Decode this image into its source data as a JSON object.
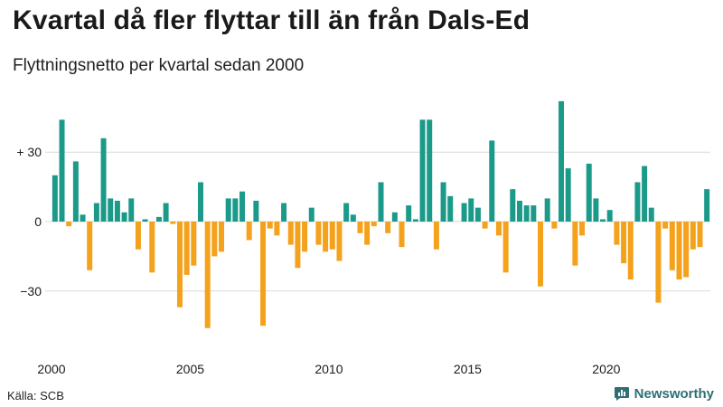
{
  "title": "Kvartal då fler flyttar till än från Dals-Ed",
  "subtitle": "Flyttningsnetto per kvartal sedan 2000",
  "source": "Källa: SCB",
  "brand": {
    "name": "Newsworthy",
    "icon": "newsworthy-logo-icon"
  },
  "colors": {
    "positive": "#1b9a8a",
    "negative": "#f4a11c",
    "grid": "#d9d9d9",
    "text": "#1a1a1a",
    "brand": "#2e6f73"
  },
  "chart_data": {
    "type": "bar",
    "title": "Kvartal då fler flyttar till än från Dals-Ed",
    "subtitle": "Flyttningsnetto per kvartal sedan 2000",
    "start": "2000Q1",
    "ylim": [
      -50,
      55
    ],
    "grid": true,
    "yticks": [
      {
        "value": 30,
        "label": "+ 30"
      },
      {
        "value": 0,
        "label": "0"
      },
      {
        "value": -30,
        "label": "−30"
      }
    ],
    "xticks": [
      {
        "index": 0,
        "label": "2000"
      },
      {
        "index": 20,
        "label": "2005"
      },
      {
        "index": 40,
        "label": "2010"
      },
      {
        "index": 60,
        "label": "2015"
      },
      {
        "index": 80,
        "label": "2020"
      }
    ],
    "values": [
      20,
      44,
      -2,
      26,
      3,
      -21,
      8,
      36,
      10,
      9,
      4,
      10,
      -12,
      1,
      -22,
      2,
      8,
      -1,
      -37,
      -23,
      -19,
      17,
      -46,
      -15,
      -13,
      10,
      10,
      13,
      -8,
      9,
      -45,
      -3,
      -6,
      8,
      -10,
      -20,
      -13,
      6,
      -10,
      -13,
      -12,
      -17,
      8,
      3,
      -5,
      -10,
      -2,
      17,
      -5,
      4,
      -11,
      7,
      1,
      44,
      44,
      -12,
      17,
      11,
      0,
      8,
      10,
      6,
      -3,
      35,
      -6,
      -22,
      14,
      9,
      7,
      7,
      -28,
      10,
      -3,
      52,
      23,
      -19,
      -6,
      25,
      10,
      1,
      5,
      -10,
      -18,
      -25,
      17,
      24,
      6,
      -35,
      -3,
      -21,
      -25,
      -24,
      -12,
      -11,
      14
    ]
  }
}
